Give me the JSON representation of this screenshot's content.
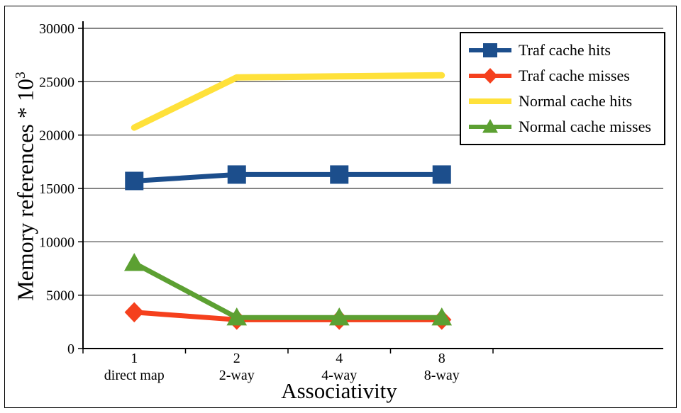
{
  "chart_data": {
    "type": "line",
    "title": "",
    "xlabel": "Associativity",
    "ylabel": "Memory references * 10^3",
    "ylabel_base": "Memory references * 10",
    "ylabel_exp": "3",
    "ylim": [
      0,
      30000
    ],
    "ytick_step": 5000,
    "grid": true,
    "legend_position": "top-right",
    "categories": [
      "1",
      "2",
      "4",
      "8"
    ],
    "category_sublabels": [
      "direct map",
      "2-way",
      "4-way",
      "8-way"
    ],
    "series": [
      {
        "name": "Traf cache hits",
        "marker": "square",
        "color": "#1c4e8c",
        "values": [
          15700,
          16300,
          16300,
          16300
        ]
      },
      {
        "name": "Traf cache misses",
        "marker": "diamond",
        "color": "#f5401d",
        "values": [
          3400,
          2700,
          2700,
          2700
        ]
      },
      {
        "name": "Normal cache hits",
        "marker": "none",
        "color": "#ffe13a",
        "values": [
          20700,
          25400,
          25500,
          25600
        ]
      },
      {
        "name": "Normal cache misses",
        "marker": "triangle",
        "color": "#5ca032",
        "values": [
          8000,
          2900,
          2900,
          2900
        ]
      }
    ]
  }
}
